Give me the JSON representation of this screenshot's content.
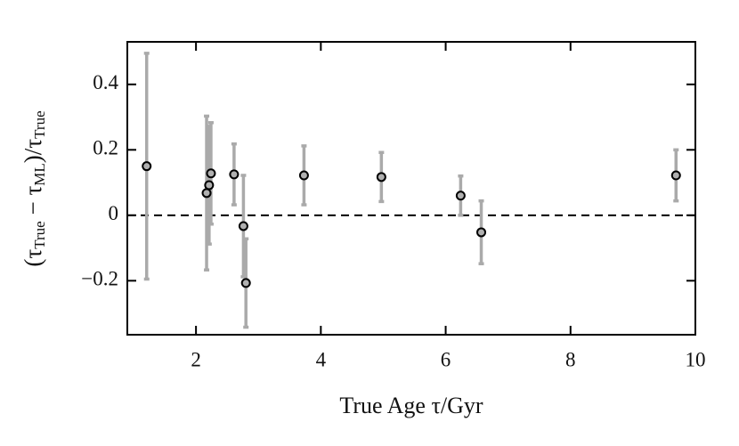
{
  "chart_data": {
    "type": "scatter",
    "xlabel": "True Age τ/Gyr",
    "ylabel": [
      "(τ",
      "True",
      " − τ",
      "ML",
      ")/τ",
      "True"
    ],
    "x": [
      1.21,
      2.17,
      2.21,
      2.24,
      2.61,
      2.76,
      2.8,
      3.73,
      4.97,
      6.24,
      6.57,
      9.69
    ],
    "values": [
      0.15,
      0.068,
      0.092,
      0.128,
      0.125,
      -0.033,
      -0.207,
      0.122,
      0.117,
      0.06,
      -0.052,
      0.122
    ],
    "errors": [
      0.345,
      0.235,
      0.18,
      0.155,
      0.093,
      0.155,
      0.135,
      0.09,
      0.075,
      0.06,
      0.096,
      0.078
    ],
    "color": "#b0b0b0",
    "error_color": "#aaaaaa",
    "xlim": [
      0.9,
      10
    ],
    "ylim": [
      -0.365,
      0.53
    ],
    "xticks": [
      2,
      4,
      6,
      8,
      10
    ],
    "yticks": [
      {
        "value": -0.2,
        "label": "−0.2"
      },
      0,
      0.2,
      0.4
    ],
    "hline": 0
  }
}
